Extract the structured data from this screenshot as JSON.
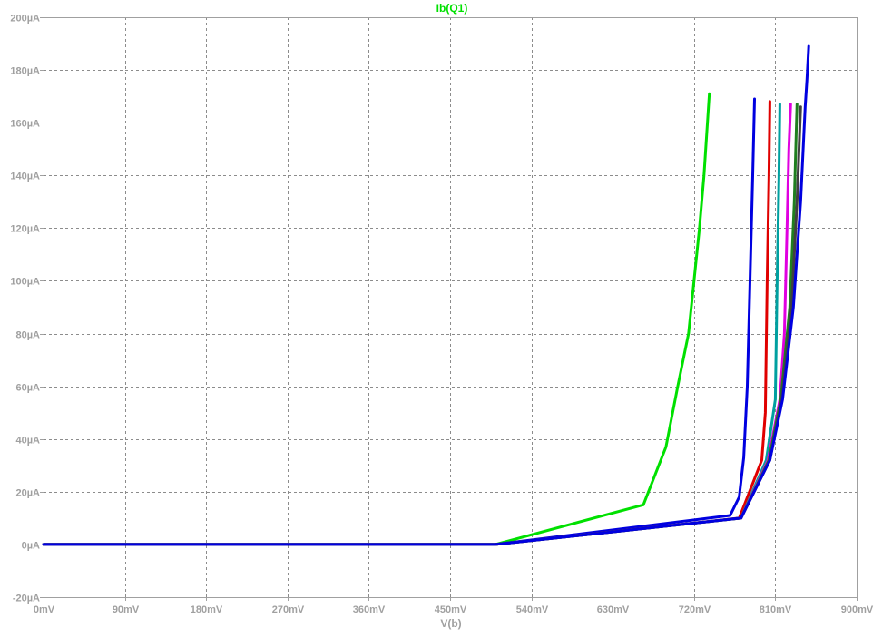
{
  "chart_data": {
    "type": "line",
    "title": "Ib(Q1)",
    "xlabel": "V(b)",
    "ylabel": "",
    "xlim": [
      0,
      900
    ],
    "ylim": [
      -20,
      200
    ],
    "x_unit": "mV",
    "y_unit": "µA",
    "grid": true,
    "colors": {
      "background": "#ffffff",
      "axis_text": "#a0a0a0",
      "grid": "#8c8c8c",
      "title": "#00e000"
    },
    "x_ticks": [
      "0mV",
      "90mV",
      "180mV",
      "270mV",
      "360mV",
      "450mV",
      "540mV",
      "630mV",
      "720mV",
      "810mV",
      "900mV"
    ],
    "x_tick_values": [
      0,
      90,
      180,
      270,
      360,
      450,
      540,
      630,
      720,
      810,
      900
    ],
    "y_ticks": [
      "-20µA",
      "0µA",
      "20µA",
      "40µA",
      "60µA",
      "80µA",
      "100µA",
      "120µA",
      "140µA",
      "160µA",
      "180µA",
      "200µA"
    ],
    "y_tick_values": [
      -20,
      0,
      20,
      40,
      60,
      80,
      100,
      120,
      140,
      160,
      180,
      200
    ],
    "series": [
      {
        "color": "#00e000",
        "points": [
          [
            0,
            0
          ],
          [
            500,
            0
          ],
          [
            664,
            15
          ],
          [
            689,
            37
          ],
          [
            702,
            60
          ],
          [
            714,
            80
          ],
          [
            720,
            100
          ],
          [
            726,
            120
          ],
          [
            731,
            140
          ],
          [
            737,
            171
          ]
        ]
      },
      {
        "color": "#0000e0",
        "points": [
          [
            0,
            0
          ],
          [
            500,
            0
          ],
          [
            760,
            11
          ],
          [
            770,
            18
          ],
          [
            775,
            33
          ],
          [
            779,
            60
          ],
          [
            782,
            100
          ],
          [
            785,
            140
          ],
          [
            787,
            169
          ]
        ]
      },
      {
        "color": "#e00000",
        "points": [
          [
            0,
            0
          ],
          [
            500,
            0
          ],
          [
            770,
            10
          ],
          [
            795,
            32
          ],
          [
            799,
            50
          ],
          [
            801,
            100
          ],
          [
            803,
            140
          ],
          [
            804,
            168
          ]
        ]
      },
      {
        "color": "#00a0a0",
        "points": [
          [
            0,
            0
          ],
          [
            500,
            0
          ],
          [
            772,
            10
          ],
          [
            800,
            32
          ],
          [
            810,
            55
          ],
          [
            812,
            100
          ],
          [
            814,
            140
          ],
          [
            815,
            167
          ]
        ]
      },
      {
        "color": "#e000e0",
        "points": [
          [
            0,
            0
          ],
          [
            500,
            0
          ],
          [
            772,
            10
          ],
          [
            802,
            32
          ],
          [
            815,
            55
          ],
          [
            820,
            80
          ],
          [
            823,
            120
          ],
          [
            825,
            150
          ],
          [
            827,
            167
          ]
        ]
      },
      {
        "color": "#1f7f1f",
        "points": [
          [
            0,
            0
          ],
          [
            500,
            0
          ],
          [
            772,
            10
          ],
          [
            803,
            32
          ],
          [
            816,
            55
          ],
          [
            826,
            90
          ],
          [
            831,
            130
          ],
          [
            834,
            167
          ]
        ]
      },
      {
        "color": "#404040",
        "points": [
          [
            0,
            0
          ],
          [
            500,
            0
          ],
          [
            772,
            10
          ],
          [
            804,
            32
          ],
          [
            817,
            55
          ],
          [
            828,
            90
          ],
          [
            834,
            130
          ],
          [
            838,
            166
          ]
        ]
      },
      {
        "color": "#0000e0",
        "points": [
          [
            0,
            0
          ],
          [
            500,
            0
          ],
          [
            772,
            10
          ],
          [
            804,
            32
          ],
          [
            818,
            55
          ],
          [
            830,
            90
          ],
          [
            838,
            130
          ],
          [
            843,
            166
          ],
          [
            845,
            176
          ],
          [
            847,
            189
          ]
        ]
      }
    ]
  }
}
